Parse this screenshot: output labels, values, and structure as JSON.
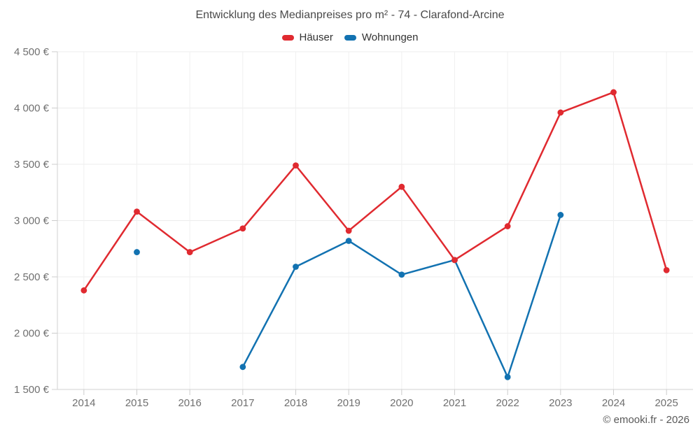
{
  "title": "Entwicklung des Medianpreises pro m² - 74 - Clarafond-Arcine",
  "credits": "© emooki.fr - 2026",
  "colors": {
    "hauser": "#e02a30",
    "wohnungen": "#1272b1",
    "gridline": "#ececec",
    "axis": "#d0d0d0",
    "tick": "#cccccc"
  },
  "chart_data": {
    "type": "line",
    "title": "Entwicklung des Medianpreises pro m² - 74 - Clarafond-Arcine",
    "x": [
      2014,
      2015,
      2016,
      2017,
      2018,
      2019,
      2020,
      2021,
      2022,
      2023,
      2024,
      2025
    ],
    "series": [
      {
        "id": "hauser",
        "name": "Häuser",
        "color": "#e02a30",
        "values": [
          2380,
          3080,
          2720,
          2930,
          3490,
          2910,
          3300,
          2650,
          2950,
          3960,
          4140,
          2560
        ]
      },
      {
        "id": "wohnungen",
        "name": "Wohnungen",
        "color": "#1272b1",
        "values": [
          null,
          2720,
          null,
          1700,
          2590,
          2820,
          2520,
          2650,
          1610,
          3050,
          null,
          null
        ]
      }
    ],
    "ylim": [
      1500,
      4500
    ],
    "yticks": [
      1500,
      2000,
      2500,
      3000,
      3500,
      4000,
      4500
    ],
    "ytick_labels": [
      "1 500 €",
      "2 000 €",
      "2 500 €",
      "3 000 €",
      "3 500 €",
      "4 000 €",
      "4 500 €"
    ],
    "xlabel": "",
    "ylabel": "",
    "grid": true,
    "legend_position": "top",
    "legend": [
      "Häuser",
      "Wohnungen"
    ]
  }
}
